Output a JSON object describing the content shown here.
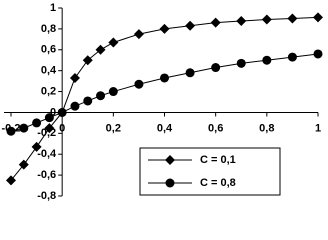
{
  "chart_data": {
    "type": "line",
    "x": [
      -0.2,
      -0.15,
      -0.1,
      -0.05,
      0,
      0.05,
      0.1,
      0.15,
      0.2,
      0.3,
      0.4,
      0.5,
      0.6,
      0.7,
      0.8,
      0.9,
      1
    ],
    "series": [
      {
        "name": "C = 0,1",
        "color": "#000000",
        "marker": "diamond",
        "values": [
          -0.65,
          -0.5,
          -0.33,
          -0.15,
          0,
          0.33,
          0.5,
          0.6,
          0.67,
          0.75,
          0.8,
          0.83,
          0.86,
          0.875,
          0.89,
          0.9,
          0.91
        ]
      },
      {
        "name": "C = 0,8",
        "color": "#000000",
        "marker": "circle",
        "values": [
          -0.18,
          -0.15,
          -0.1,
          -0.05,
          0,
          0.06,
          0.11,
          0.16,
          0.2,
          0.27,
          0.33,
          0.38,
          0.43,
          0.47,
          0.5,
          0.53,
          0.56
        ]
      }
    ],
    "xlim": [
      -0.2,
      1
    ],
    "ylim": [
      -0.8,
      1
    ],
    "xticks": [
      {
        "value": -0.2,
        "label": "-0,2"
      },
      0,
      {
        "value": 0.2,
        "label": "0,2"
      },
      {
        "value": 0.4,
        "label": "0,4"
      },
      {
        "value": 0.6,
        "label": "0,6"
      },
      {
        "value": 0.8,
        "label": "0,8"
      },
      1
    ],
    "yticks": [
      {
        "value": -0.8,
        "label": "-0,8"
      },
      {
        "value": -0.6,
        "label": "-0,6"
      },
      {
        "value": -0.4,
        "label": "-0,4"
      },
      {
        "value": -0.2,
        "label": "-0,2"
      },
      0,
      {
        "value": 0.2,
        "label": "0,2"
      },
      {
        "value": 0.4,
        "label": "0,4"
      },
      {
        "value": 0.6,
        "label": "0,6"
      },
      {
        "value": 0.8,
        "label": "0,8"
      },
      1
    ],
    "grid": false,
    "legend": "bottom-right"
  }
}
